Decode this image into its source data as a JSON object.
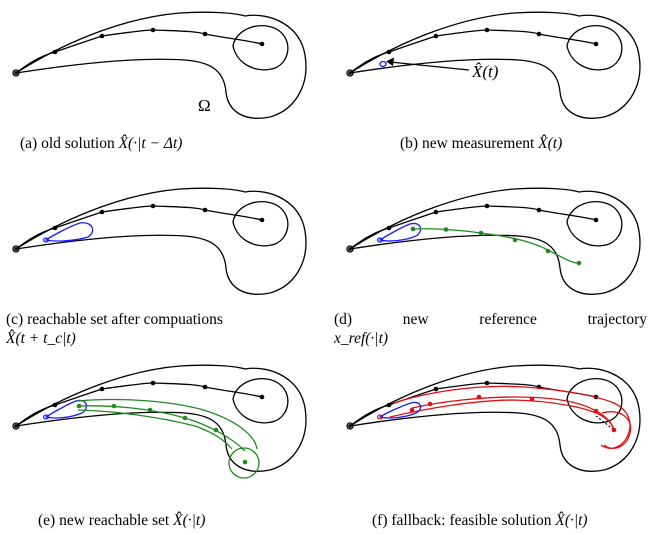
{
  "colors": {
    "outline": "#000000",
    "blue": "#1a1aff",
    "green": "#1f8a1f",
    "red": "#e01010"
  },
  "omega_label": "Ω",
  "measurement_label": "X̂(t)",
  "captions": {
    "a": {
      "text": "(a) old solution ",
      "math": "X̂(·|t − Δt)"
    },
    "b": {
      "text": "(b) new measurement ",
      "math": "X̂(t)"
    },
    "c": {
      "line1": "(c) reachable set after compuations",
      "line2": "X̂(t + t_c|t)"
    },
    "d": {
      "words": [
        "(d)",
        "new",
        "reference",
        "trajectory"
      ],
      "line2": "x_ref(·|t)"
    },
    "e": {
      "text": "(e) new reachable set ",
      "math": "X̂(·|t)"
    },
    "f": {
      "text": "(f) fallback: feasible solution ",
      "math": "X̂(·|t)"
    }
  }
}
